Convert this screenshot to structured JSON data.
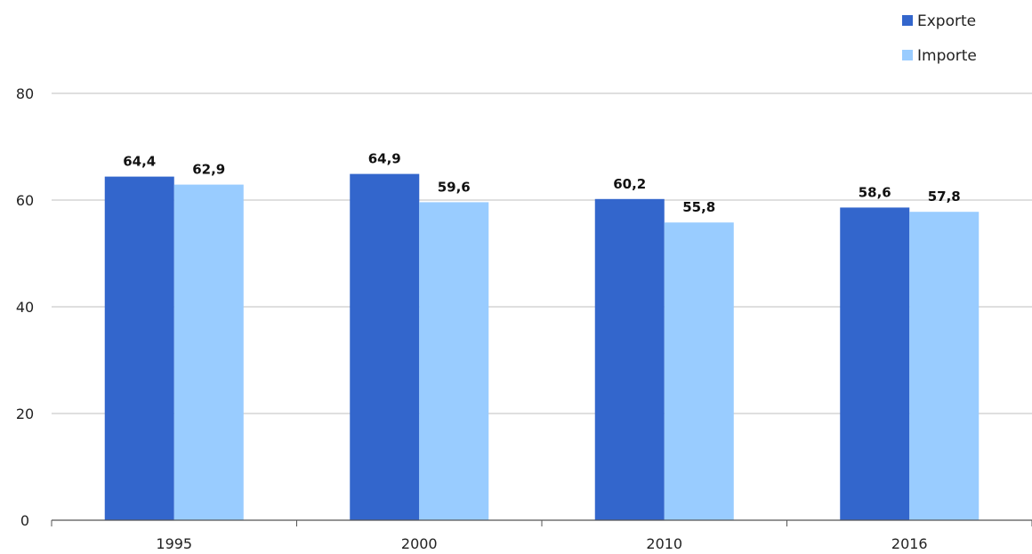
{
  "chart_data": {
    "type": "bar",
    "title": "",
    "xlabel": "",
    "ylabel": "",
    "categories": [
      "1995",
      "2000",
      "2010",
      "2016"
    ],
    "series": [
      {
        "name": "Exporte",
        "color": "#3366cc",
        "values": [
          64.4,
          64.9,
          60.2,
          58.6
        ],
        "labels": [
          "64,4",
          "64,9",
          "60,2",
          "58,6"
        ]
      },
      {
        "name": "Importe",
        "color": "#99ccff",
        "values": [
          62.9,
          59.6,
          55.8,
          57.8
        ],
        "labels": [
          "62,9",
          "59,6",
          "55,8",
          "57,8"
        ]
      }
    ],
    "ylim": [
      0,
      80
    ],
    "yticks": [
      0,
      20,
      40,
      60,
      80
    ],
    "grid": true,
    "legend": "top-right"
  }
}
